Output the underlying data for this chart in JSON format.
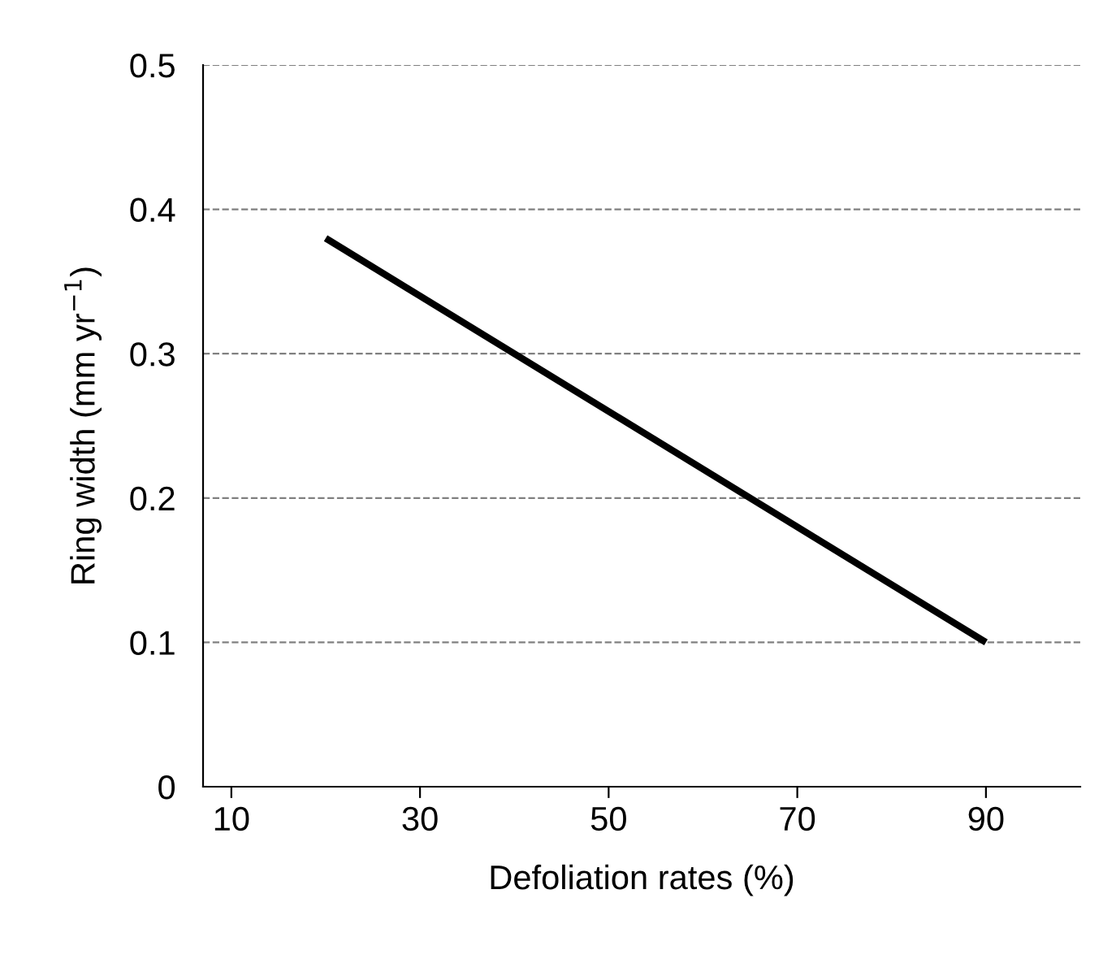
{
  "chart_data": {
    "type": "line",
    "xlabel": "Defoliation rates (%)",
    "ylabel": "Ring width (mm yr$^{−1}$)",
    "x": [
      20,
      90
    ],
    "series": [
      {
        "color": "#000000",
        "values": [
          0.38,
          0.1
        ]
      }
    ],
    "xlim": [
      7,
      100
    ],
    "xticks": [
      10,
      30,
      50,
      70,
      90
    ],
    "ylim": [
      0,
      0.5
    ],
    "yticks": [
      0,
      0.1,
      0.2,
      0.3,
      0.4,
      0.5
    ],
    "grid": "y",
    "line_style": "solid"
  }
}
